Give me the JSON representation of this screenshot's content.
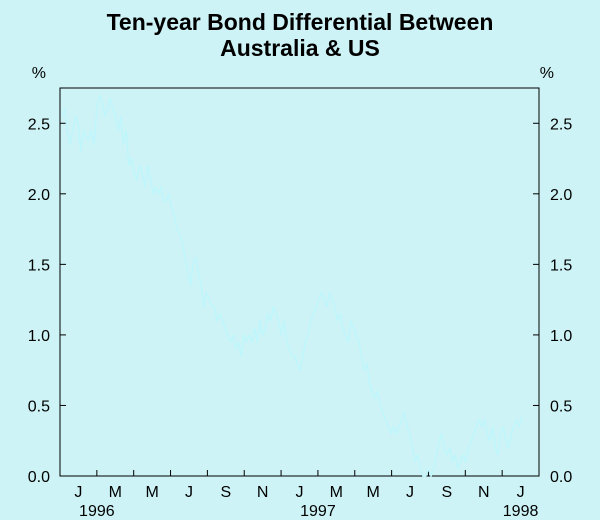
{
  "chart_data": {
    "type": "line",
    "title": [
      "Ten-year Bond Differential Between",
      "Australia & US"
    ],
    "left_unit": "%",
    "right_unit": "%",
    "ylim": [
      0,
      2.75
    ],
    "yticks": [
      "0.0",
      "0.5",
      "1.0",
      "1.5",
      "2.0",
      "2.5"
    ],
    "x_month_ticks": [
      "J",
      "M",
      "M",
      "J",
      "S",
      "N",
      "J",
      "M",
      "M",
      "J",
      "S",
      "N",
      "J"
    ],
    "x_year_labels": [
      "1996",
      "1997",
      "1998"
    ],
    "grid": false,
    "series_color": "#bff6fb",
    "series": [
      {
        "values": [
          2.55,
          2.6,
          2.45,
          2.35,
          2.45,
          2.55,
          2.5,
          2.3,
          2.45,
          2.4,
          2.38,
          2.45,
          2.35,
          2.6,
          2.7,
          2.65,
          2.55,
          2.6,
          2.68,
          2.6,
          2.55,
          2.45,
          2.55,
          2.35,
          2.45,
          2.2,
          2.25,
          2.15,
          2.1,
          2.2,
          2.15,
          2.05,
          2.2,
          2.12,
          2.0,
          2.05,
          2.0,
          2.05,
          1.95,
          1.95,
          2.0,
          1.9,
          1.85,
          1.75,
          1.72,
          1.65,
          1.55,
          1.45,
          1.35,
          1.5,
          1.55,
          1.45,
          1.35,
          1.2,
          1.3,
          1.25,
          1.2,
          1.2,
          1.1,
          1.15,
          1.1,
          1.05,
          1.0,
          0.95,
          1.0,
          0.9,
          0.95,
          0.85,
          1.0,
          0.95,
          1.0,
          0.95,
          1.05,
          0.95,
          1.1,
          1.0,
          1.05,
          1.15,
          1.1,
          1.2,
          1.15,
          1.1,
          1.0,
          1.1,
          0.95,
          0.9,
          0.85,
          0.85,
          0.8,
          0.75,
          0.85,
          0.95,
          1.0,
          1.1,
          1.15,
          1.2,
          1.25,
          1.3,
          1.25,
          1.2,
          1.3,
          1.25,
          1.2,
          1.1,
          1.15,
          1.05,
          1.0,
          0.95,
          1.1,
          1.05,
          1.0,
          0.95,
          0.85,
          0.75,
          0.8,
          0.65,
          0.6,
          0.55,
          0.6,
          0.5,
          0.45,
          0.4,
          0.35,
          0.3,
          0.35,
          0.3,
          0.35,
          0.4,
          0.45,
          0.35,
          0.3,
          0.2,
          0.1,
          0.15,
          0.05,
          0.0,
          0.0,
          0.05,
          0.0,
          0.05,
          0.15,
          0.25,
          0.3,
          0.2,
          0.15,
          0.2,
          0.1,
          0.15,
          0.05,
          0.1,
          0.15,
          0.1,
          0.2,
          0.25,
          0.3,
          0.35,
          0.4,
          0.35,
          0.4,
          0.3,
          0.25,
          0.35,
          0.2,
          0.15,
          0.3,
          0.35,
          0.25,
          0.2,
          0.3,
          0.35,
          0.4,
          0.35,
          0.42
        ]
      }
    ]
  }
}
